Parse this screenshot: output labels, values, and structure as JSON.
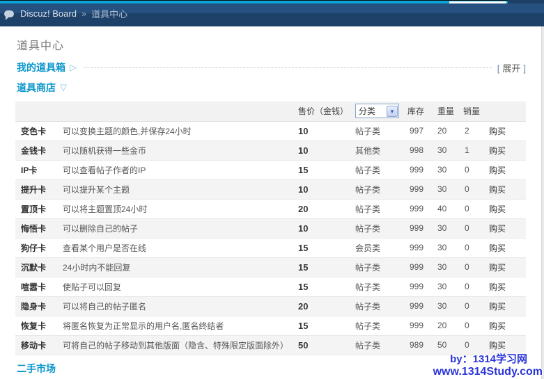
{
  "topbar": {
    "breadcrumb_site": "Discuz! Board",
    "breadcrumb_separator": "»",
    "breadcrumb_page": "道具中心"
  },
  "page_title": "道具中心",
  "sections": {
    "my_items_box": {
      "label": "我的道具箱",
      "arrow": "▷",
      "expand_open": "[",
      "expand_label": "展开",
      "expand_close": "]"
    },
    "item_shop": {
      "label": "道具商店",
      "arrow": "▽"
    },
    "second_hand_market": {
      "label": "二手市场"
    }
  },
  "shop_table": {
    "headers": {
      "price": "售价（金钱）",
      "category_filter": "分类",
      "category_filter_arrow": "▼",
      "stock": "库存",
      "weight": "重量",
      "sales": "销量"
    },
    "buy_label": "购买",
    "rows": [
      {
        "name": "变色卡",
        "desc": "可以变换主题的颜色,并保存24小时",
        "price": "10",
        "category": "帖子类",
        "stock": "997",
        "weight": "20",
        "sales": "2"
      },
      {
        "name": "金钱卡",
        "desc": "可以随机获得一些金币",
        "price": "10",
        "category": "其他类",
        "stock": "998",
        "weight": "30",
        "sales": "1"
      },
      {
        "name": "IP卡",
        "desc": "可以查看帖子作者的IP",
        "price": "15",
        "category": "帖子类",
        "stock": "999",
        "weight": "30",
        "sales": "0"
      },
      {
        "name": "提升卡",
        "desc": "可以提升某个主题",
        "price": "10",
        "category": "帖子类",
        "stock": "999",
        "weight": "30",
        "sales": "0"
      },
      {
        "name": "置顶卡",
        "desc": "可以将主题置顶24小时",
        "price": "20",
        "category": "帖子类",
        "stock": "999",
        "weight": "40",
        "sales": "0"
      },
      {
        "name": "悔悟卡",
        "desc": "可以删除自己的帖子",
        "price": "10",
        "category": "帖子类",
        "stock": "999",
        "weight": "30",
        "sales": "0"
      },
      {
        "name": "狗仔卡",
        "desc": "查看某个用户是否在线",
        "price": "15",
        "category": "会员类",
        "stock": "999",
        "weight": "30",
        "sales": "0"
      },
      {
        "name": "沉默卡",
        "desc": "24小时内不能回复",
        "price": "15",
        "category": "帖子类",
        "stock": "999",
        "weight": "30",
        "sales": "0"
      },
      {
        "name": "喧嚣卡",
        "desc": "使贴子可以回复",
        "price": "15",
        "category": "帖子类",
        "stock": "999",
        "weight": "30",
        "sales": "0"
      },
      {
        "name": "隐身卡",
        "desc": "可以将自己的帖子匿名",
        "price": "20",
        "category": "帖子类",
        "stock": "999",
        "weight": "30",
        "sales": "0"
      },
      {
        "name": "恢复卡",
        "desc": "将匿名恢复为正常显示的用户名,匿名终结者",
        "price": "15",
        "category": "帖子类",
        "stock": "999",
        "weight": "20",
        "sales": "0"
      },
      {
        "name": "移动卡",
        "desc": "可将自己的帖子移动到其他版面（隐含、特殊限定版面除外）",
        "price": "50",
        "category": "帖子类",
        "stock": "989",
        "weight": "50",
        "sales": "0"
      }
    ]
  },
  "watermark": {
    "line1": "by：1314学习网",
    "line2": "www.1314Study.com"
  },
  "colors": {
    "accent_blue": "#0a96cd",
    "navbar_top": "#25507f",
    "navbar_bottom": "#1d4168",
    "cyan_strip": "#0aa3d8",
    "watermark_blue": "#2a35d8"
  }
}
